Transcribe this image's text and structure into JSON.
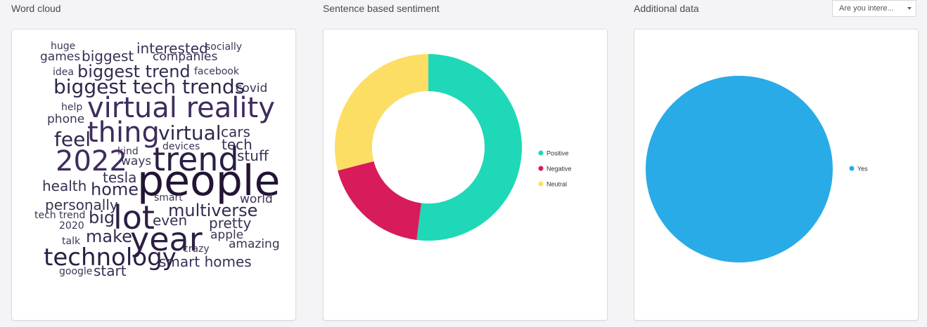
{
  "titles": {
    "wordcloud": "Word cloud",
    "sentiment": "Sentence based sentiment",
    "additional": "Additional data"
  },
  "dropdown": {
    "selected": "Are you intere..."
  },
  "wordcloud": {
    "words": [
      {
        "text": "huge",
        "weight": 1
      },
      {
        "text": "games",
        "weight": 2
      },
      {
        "text": "biggest",
        "weight": 3
      },
      {
        "text": "interested",
        "weight": 3
      },
      {
        "text": "companies",
        "weight": 2
      },
      {
        "text": "socially",
        "weight": 1
      },
      {
        "text": "idea",
        "weight": 1
      },
      {
        "text": "biggest trend",
        "weight": 4
      },
      {
        "text": "facebook",
        "weight": 1
      },
      {
        "text": "biggest tech trends",
        "weight": 5
      },
      {
        "text": "covid",
        "weight": 2
      },
      {
        "text": "help",
        "weight": 1
      },
      {
        "text": "virtual reality",
        "weight": 7
      },
      {
        "text": "phone",
        "weight": 2
      },
      {
        "text": "thing",
        "weight": 7
      },
      {
        "text": "virtual",
        "weight": 5
      },
      {
        "text": "cars",
        "weight": 3
      },
      {
        "text": "feel",
        "weight": 5
      },
      {
        "text": "devices",
        "weight": 1
      },
      {
        "text": "tech",
        "weight": 3
      },
      {
        "text": "kind",
        "weight": 1
      },
      {
        "text": "2022",
        "weight": 7
      },
      {
        "text": "trend",
        "weight": 8
      },
      {
        "text": "stuff",
        "weight": 3
      },
      {
        "text": "ways",
        "weight": 2
      },
      {
        "text": "tesla",
        "weight": 3
      },
      {
        "text": "health",
        "weight": 3
      },
      {
        "text": "home",
        "weight": 4
      },
      {
        "text": "people",
        "weight": 10
      },
      {
        "text": "smart",
        "weight": 1
      },
      {
        "text": "world",
        "weight": 2
      },
      {
        "text": "personally",
        "weight": 3
      },
      {
        "text": "lot",
        "weight": 8
      },
      {
        "text": "multiverse",
        "weight": 4
      },
      {
        "text": "tech trend",
        "weight": 1
      },
      {
        "text": "big",
        "weight": 4
      },
      {
        "text": "even",
        "weight": 3
      },
      {
        "text": "pretty",
        "weight": 3
      },
      {
        "text": "2020",
        "weight": 1
      },
      {
        "text": "make",
        "weight": 4
      },
      {
        "text": "year",
        "weight": 8
      },
      {
        "text": "apple",
        "weight": 2
      },
      {
        "text": "talk",
        "weight": 1
      },
      {
        "text": "amazing",
        "weight": 2
      },
      {
        "text": "crazy",
        "weight": 1
      },
      {
        "text": "technology",
        "weight": 6
      },
      {
        "text": "smart homes",
        "weight": 3
      },
      {
        "text": "google",
        "weight": 1
      },
      {
        "text": "start",
        "weight": 3
      }
    ]
  },
  "chart_data": [
    {
      "type": "pie",
      "title": "Sentence based sentiment",
      "donut": true,
      "legend_position": "right",
      "slices": [
        {
          "label": "Positive",
          "value": 0.52,
          "color": "#1fd8b7"
        },
        {
          "label": "Negative",
          "value": 0.19,
          "color": "#d81b5a"
        },
        {
          "label": "Neutral",
          "value": 0.29,
          "color": "#fcde65"
        }
      ]
    },
    {
      "type": "pie",
      "title": "Additional data",
      "donut": false,
      "legend_position": "right",
      "slices": [
        {
          "label": "Yes",
          "value": 1.0,
          "color": "#29abe8"
        }
      ]
    }
  ]
}
